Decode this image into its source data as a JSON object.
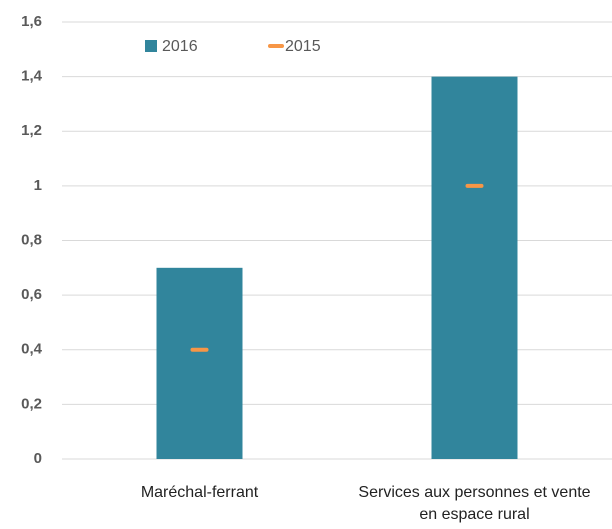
{
  "chart_data": {
    "type": "bar",
    "categories": [
      "Maréchal-ferrant",
      "Services aux personnes et vente en espace rural"
    ],
    "series": [
      {
        "name": "2016",
        "color": "#31859c",
        "values": [
          0.7,
          1.4
        ]
      },
      {
        "name": "2015",
        "color": "#f79646",
        "values": [
          0.4,
          1.0
        ],
        "marker": "dash"
      }
    ],
    "ylim": [
      0,
      1.6
    ],
    "yticks": [
      0,
      {
        "value": 0.2,
        "label": "0,2"
      },
      {
        "value": 0.4,
        "label": "0,4"
      },
      {
        "value": 0.6,
        "label": "0,6"
      },
      {
        "value": 0.8,
        "label": "0,8"
      },
      1,
      {
        "value": 1.2,
        "label": "1,2"
      },
      {
        "value": 1.4,
        "label": "1,4"
      },
      {
        "value": 1.6,
        "label": "1,6"
      }
    ],
    "grid": true
  }
}
